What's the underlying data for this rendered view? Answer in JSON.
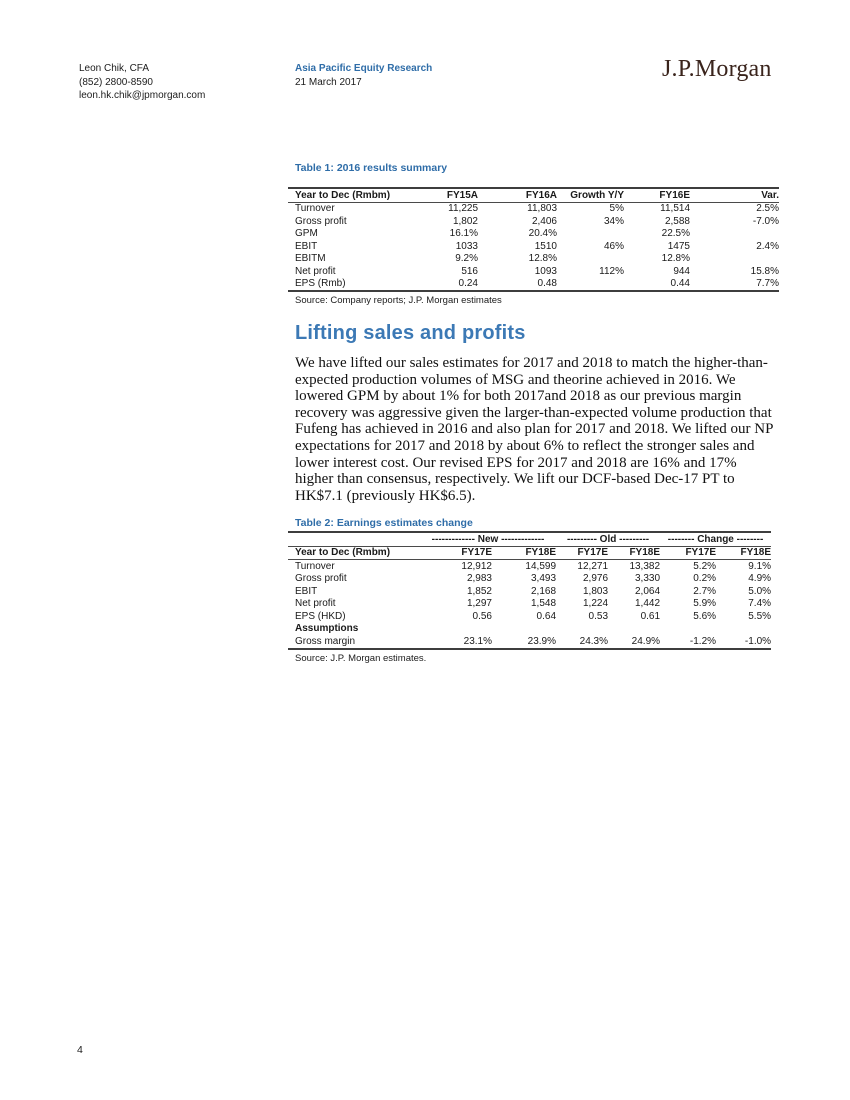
{
  "header": {
    "contact": {
      "name": "Leon Chik, CFA",
      "phone": "(852) 2800-8590",
      "email": "leon.hk.chik@jpmorgan.com"
    },
    "publication": {
      "title": "Asia Pacific Equity Research",
      "date": "21 March 2017"
    },
    "logo": "J.P.Morgan"
  },
  "colors": {
    "accent_blue": "#3c79b5",
    "logo_brown": "#3a241c"
  },
  "table1": {
    "title": "Table 1: 2016 results summary",
    "columns": [
      "Year to Dec (Rmbm)",
      "FY15A",
      "FY16A",
      "Growth Y/Y",
      "FY16E",
      "Var."
    ],
    "rows": [
      [
        "Turnover",
        "11,225",
        "11,803",
        "5%",
        "11,514",
        "2.5%"
      ],
      [
        "Gross profit",
        "1,802",
        "2,406",
        "34%",
        "2,588",
        "-7.0%"
      ],
      [
        "GPM",
        "16.1%",
        "20.4%",
        "",
        "22.5%",
        ""
      ],
      [
        "EBIT",
        "1033",
        "1510",
        "46%",
        "1475",
        "2.4%"
      ],
      [
        "EBITM",
        "9.2%",
        "12.8%",
        "",
        "12.8%",
        ""
      ],
      [
        "Net profit",
        "516",
        "1093",
        "112%",
        "944",
        "15.8%"
      ],
      [
        "EPS (Rmb)",
        "0.24",
        "0.48",
        "",
        "0.44",
        "7.7%"
      ]
    ],
    "source": "Source: Company reports; J.P. Morgan estimates"
  },
  "section": {
    "heading": "Lifting sales and profits",
    "body": "We have lifted our sales estimates for 2017 and 2018 to match the higher-than-expected production volumes of MSG and theorine achieved in 2016. We lowered GPM by about 1% for both 2017and 2018 as our previous margin recovery was aggressive given the larger-than-expected volume production that Fufeng has achieved in 2016 and also plan for 2017 and 2018. We lifted our NP expectations for 2017 and 2018 by about 6% to reflect the stronger sales and lower interest cost. Our revised EPS for 2017 and 2018 are 16% and 17% higher than consensus, respectively. We lift our DCF-based Dec-17 PT to HK$7.1 (previously HK$6.5)."
  },
  "table2": {
    "title": "Table 2: Earnings estimates change",
    "groups": [
      "------------- New -------------",
      "--------- Old ---------",
      "-------- Change --------"
    ],
    "columns": [
      "Year to Dec (Rmbm)",
      "FY17E",
      "FY18E",
      "FY17E",
      "FY18E",
      "FY17E",
      "FY18E"
    ],
    "rows": [
      [
        "Turnover",
        "12,912",
        "14,599",
        "12,271",
        "13,382",
        "5.2%",
        "9.1%"
      ],
      [
        "Gross profit",
        "2,983",
        "3,493",
        "2,976",
        "3,330",
        "0.2%",
        "4.9%"
      ],
      [
        "EBIT",
        "1,852",
        "2,168",
        "1,803",
        "2,064",
        "2.7%",
        "5.0%"
      ],
      [
        "Net profit",
        "1,297",
        "1,548",
        "1,224",
        "1,442",
        "5.9%",
        "7.4%"
      ],
      [
        "EPS (HKD)",
        "0.56",
        "0.64",
        "0.53",
        "0.61",
        "5.6%",
        "5.5%"
      ],
      [
        "Assumptions",
        "",
        "",
        "",
        "",
        "",
        ""
      ],
      [
        "Gross margin",
        "23.1%",
        "23.9%",
        "24.3%",
        "24.9%",
        "-1.2%",
        "-1.0%"
      ]
    ],
    "source": "Source: J.P. Morgan estimates."
  },
  "footer": {
    "page_number": "4"
  }
}
